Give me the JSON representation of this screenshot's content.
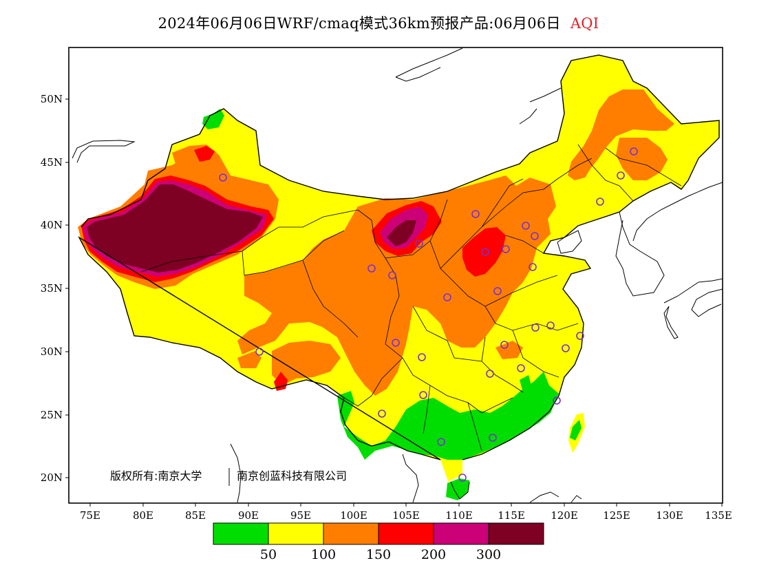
{
  "title": {
    "main": "2024年06月06日WRF/cmaq模式36km预报产品:06月06日",
    "tag": "AQI",
    "tag_color": "#e0202a"
  },
  "credit": {
    "line1": "版权所有:南京大学",
    "line2": "南京创蓝科技有限公司"
  },
  "axes": {
    "lon_ticks": [
      "75E",
      "80E",
      "85E",
      "90E",
      "95E",
      "100E",
      "105E",
      "110E",
      "115E",
      "120E",
      "125E",
      "130E",
      "135E"
    ],
    "lat_ticks": [
      "50N",
      "45N",
      "40N",
      "35N",
      "30N",
      "25N",
      "20N"
    ]
  },
  "colorbar": {
    "colors": [
      "#00dd00",
      "#ffff00",
      "#ff7e00",
      "#ff0000",
      "#cc0077",
      "#7e0023"
    ],
    "labels": [
      "50",
      "100",
      "150",
      "200",
      "300"
    ]
  },
  "map": {
    "background_color": "#ffffff",
    "border_color": "#000000",
    "station_marker_color": "#7a2fd0"
  }
}
